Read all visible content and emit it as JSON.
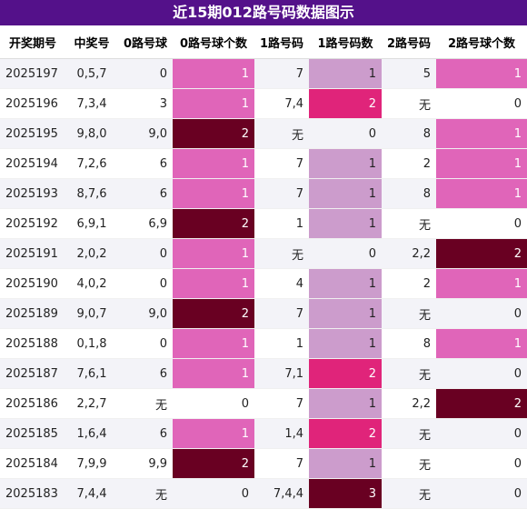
{
  "title": "近15期012路号码数据图示",
  "columns": [
    "开奖期号",
    "中奖号",
    "0路号球",
    "0路号球个数",
    "1路号码",
    "1路号码数",
    "2路号码",
    "2路号球个数"
  ],
  "rows": [
    {
      "period": "2025197",
      "numbers": "0,5,7",
      "r0": "0",
      "r0c": "1",
      "r1": "7",
      "r1c": "1",
      "r2": "5",
      "r2c": "1"
    },
    {
      "period": "2025196",
      "numbers": "7,3,4",
      "r0": "3",
      "r0c": "1",
      "r1": "7,4",
      "r1c": "2",
      "r2": "无",
      "r2c": "0"
    },
    {
      "period": "2025195",
      "numbers": "9,8,0",
      "r0": "9,0",
      "r0c": "2",
      "r1": "无",
      "r1c": "0",
      "r2": "8",
      "r2c": "1"
    },
    {
      "period": "2025194",
      "numbers": "7,2,6",
      "r0": "6",
      "r0c": "1",
      "r1": "7",
      "r1c": "1",
      "r2": "2",
      "r2c": "1"
    },
    {
      "period": "2025193",
      "numbers": "8,7,6",
      "r0": "6",
      "r0c": "1",
      "r1": "7",
      "r1c": "1",
      "r2": "8",
      "r2c": "1"
    },
    {
      "period": "2025192",
      "numbers": "6,9,1",
      "r0": "6,9",
      "r0c": "2",
      "r1": "1",
      "r1c": "1",
      "r2": "无",
      "r2c": "0"
    },
    {
      "period": "2025191",
      "numbers": "2,0,2",
      "r0": "0",
      "r0c": "1",
      "r1": "无",
      "r1c": "0",
      "r2": "2,2",
      "r2c": "2"
    },
    {
      "period": "2025190",
      "numbers": "4,0,2",
      "r0": "0",
      "r0c": "1",
      "r1": "4",
      "r1c": "1",
      "r2": "2",
      "r2c": "1"
    },
    {
      "period": "2025189",
      "numbers": "9,0,7",
      "r0": "9,0",
      "r0c": "2",
      "r1": "7",
      "r1c": "1",
      "r2": "无",
      "r2c": "0"
    },
    {
      "period": "2025188",
      "numbers": "0,1,8",
      "r0": "0",
      "r0c": "1",
      "r1": "1",
      "r1c": "1",
      "r2": "8",
      "r2c": "1"
    },
    {
      "period": "2025187",
      "numbers": "7,6,1",
      "r0": "6",
      "r0c": "1",
      "r1": "7,1",
      "r1c": "2",
      "r2": "无",
      "r2c": "0"
    },
    {
      "period": "2025186",
      "numbers": "2,2,7",
      "r0": "无",
      "r0c": "0",
      "r1": "7",
      "r1c": "1",
      "r2": "2,2",
      "r2c": "2"
    },
    {
      "period": "2025185",
      "numbers": "1,6,4",
      "r0": "6",
      "r0c": "1",
      "r1": "1,4",
      "r1c": "2",
      "r2": "无",
      "r2c": "0"
    },
    {
      "period": "2025184",
      "numbers": "7,9,9",
      "r0": "9,9",
      "r0c": "2",
      "r1": "7",
      "r1c": "1",
      "r2": "无",
      "r2c": "0"
    },
    {
      "period": "2025183",
      "numbers": "7,4,4",
      "r0": "无",
      "r0c": "0",
      "r1": "7,4,4",
      "r1c": "3",
      "r2": "无",
      "r2c": "0"
    }
  ],
  "colors": {
    "title_bg": "#54118a",
    "count_1": "#e065b9",
    "count_2": "#690022",
    "r1_count_1": "#cc9ccc",
    "r1_count_2": "#e0247a",
    "r1_count_3": "#690022"
  }
}
